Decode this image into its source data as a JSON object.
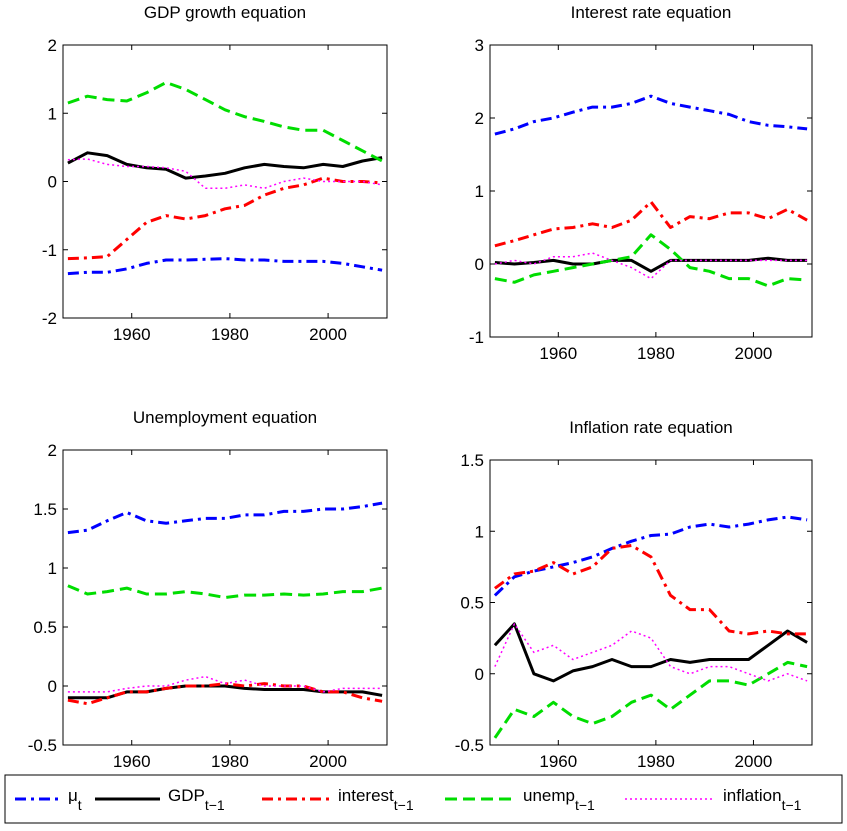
{
  "chart_data": [
    {
      "type": "line",
      "title": "GDP growth equation",
      "x": [
        1947,
        1951,
        1955,
        1959,
        1963,
        1967,
        1971,
        1975,
        1979,
        1983,
        1987,
        1991,
        1995,
        1999,
        2003,
        2007,
        2011
      ],
      "xlim": [
        1946,
        2012
      ],
      "xticks": [
        1960,
        1980,
        2000
      ],
      "ylim": [
        -2,
        2
      ],
      "yticks": [
        -2,
        -1,
        0,
        1,
        2
      ],
      "series": [
        {
          "color": "#0000ff",
          "linestyle": "dashdot",
          "linewidth": 3,
          "values": [
            -1.35,
            -1.33,
            -1.33,
            -1.28,
            -1.2,
            -1.15,
            -1.15,
            -1.14,
            -1.13,
            -1.15,
            -1.15,
            -1.17,
            -1.17,
            -1.17,
            -1.2,
            -1.25,
            -1.3
          ]
        },
        {
          "color": "#000000",
          "linestyle": "solid",
          "linewidth": 3,
          "values": [
            0.27,
            0.42,
            0.38,
            0.25,
            0.2,
            0.18,
            0.05,
            0.08,
            0.12,
            0.2,
            0.25,
            0.22,
            0.2,
            0.25,
            0.22,
            0.3,
            0.35
          ]
        },
        {
          "color": "#ff0000",
          "linestyle": "dashdot",
          "linewidth": 3,
          "values": [
            -1.13,
            -1.12,
            -1.1,
            -0.85,
            -0.6,
            -0.5,
            -0.55,
            -0.5,
            -0.4,
            -0.35,
            -0.2,
            -0.1,
            -0.05,
            0.05,
            0,
            0,
            -0.02
          ]
        },
        {
          "color": "#00dd00",
          "linestyle": "dashed",
          "linewidth": 3,
          "values": [
            1.15,
            1.25,
            1.2,
            1.18,
            1.3,
            1.45,
            1.35,
            1.2,
            1.05,
            0.95,
            0.88,
            0.8,
            0.75,
            0.75,
            0.6,
            0.45,
            0.3
          ]
        },
        {
          "color": "#ff00ff",
          "linestyle": "dotted",
          "linewidth": 1.5,
          "values": [
            0.32,
            0.33,
            0.25,
            0.22,
            0.22,
            0.2,
            0.15,
            -0.1,
            -0.1,
            -0.05,
            -0.1,
            0,
            0.05,
            0,
            0,
            0,
            -0.05
          ]
        }
      ]
    },
    {
      "type": "line",
      "title": "Interest rate equation",
      "x": [
        1947,
        1951,
        1955,
        1959,
        1963,
        1967,
        1971,
        1975,
        1979,
        1983,
        1987,
        1991,
        1995,
        1999,
        2003,
        2007,
        2011
      ],
      "xlim": [
        1946,
        2012
      ],
      "xticks": [
        1960,
        1980,
        2000
      ],
      "ylim": [
        -1,
        3
      ],
      "yticks": [
        -1,
        0,
        1,
        2,
        3
      ],
      "series": [
        {
          "color": "#0000ff",
          "linestyle": "dashdot",
          "linewidth": 3,
          "values": [
            1.78,
            1.85,
            1.95,
            2.0,
            2.08,
            2.15,
            2.15,
            2.2,
            2.3,
            2.2,
            2.15,
            2.1,
            2.05,
            1.95,
            1.9,
            1.88,
            1.85
          ]
        },
        {
          "color": "#000000",
          "linestyle": "solid",
          "linewidth": 3,
          "values": [
            0.02,
            0,
            0.02,
            0.05,
            0,
            0,
            0.05,
            0.05,
            -0.1,
            0.05,
            0.05,
            0.05,
            0.05,
            0.05,
            0.08,
            0.05,
            0.05
          ]
        },
        {
          "color": "#ff0000",
          "linestyle": "dashdot",
          "linewidth": 3,
          "values": [
            0.25,
            0.32,
            0.4,
            0.48,
            0.5,
            0.55,
            0.5,
            0.6,
            0.85,
            0.5,
            0.65,
            0.62,
            0.7,
            0.7,
            0.62,
            0.75,
            0.6
          ]
        },
        {
          "color": "#00dd00",
          "linestyle": "dashed",
          "linewidth": 3,
          "values": [
            -0.2,
            -0.25,
            -0.15,
            -0.1,
            -0.05,
            0,
            0.05,
            0.1,
            0.4,
            0.2,
            -0.05,
            -0.1,
            -0.2,
            -0.2,
            -0.3,
            -0.2,
            -0.22
          ]
        },
        {
          "color": "#ff00ff",
          "linestyle": "dotted",
          "linewidth": 1.5,
          "values": [
            0,
            0.05,
            0,
            0.1,
            0.1,
            0.15,
            0.05,
            -0.05,
            -0.2,
            0.05,
            0.05,
            0.05,
            0.05,
            0.05,
            0.05,
            0.05,
            0.05
          ]
        }
      ]
    },
    {
      "type": "line",
      "title": "Unemployment equation",
      "x": [
        1947,
        1951,
        1955,
        1959,
        1963,
        1967,
        1971,
        1975,
        1979,
        1983,
        1987,
        1991,
        1995,
        1999,
        2003,
        2007,
        2011
      ],
      "xlim": [
        1946,
        2012
      ],
      "xticks": [
        1960,
        1980,
        2000
      ],
      "ylim": [
        -0.5,
        2
      ],
      "yticks": [
        -0.5,
        0,
        0.5,
        1,
        1.5,
        2
      ],
      "series": [
        {
          "color": "#0000ff",
          "linestyle": "dashdot",
          "linewidth": 3,
          "values": [
            1.3,
            1.32,
            1.4,
            1.47,
            1.4,
            1.38,
            1.4,
            1.42,
            1.42,
            1.45,
            1.45,
            1.48,
            1.48,
            1.5,
            1.5,
            1.52,
            1.55
          ]
        },
        {
          "color": "#000000",
          "linestyle": "solid",
          "linewidth": 3,
          "values": [
            -0.1,
            -0.1,
            -0.1,
            -0.05,
            -0.05,
            -0.02,
            0,
            0,
            0,
            -0.02,
            -0.03,
            -0.03,
            -0.03,
            -0.05,
            -0.05,
            -0.05,
            -0.08
          ]
        },
        {
          "color": "#ff0000",
          "linestyle": "dashdot",
          "linewidth": 3,
          "values": [
            -0.12,
            -0.15,
            -0.1,
            -0.05,
            -0.05,
            -0.02,
            0,
            0,
            0.02,
            0,
            0.02,
            0,
            0,
            -0.05,
            -0.05,
            -0.1,
            -0.13
          ]
        },
        {
          "color": "#00dd00",
          "linestyle": "dashed",
          "linewidth": 3,
          "values": [
            0.85,
            0.78,
            0.8,
            0.83,
            0.78,
            0.78,
            0.8,
            0.78,
            0.75,
            0.77,
            0.77,
            0.78,
            0.77,
            0.78,
            0.8,
            0.8,
            0.83
          ]
        },
        {
          "color": "#ff00ff",
          "linestyle": "dotted",
          "linewidth": 1.5,
          "values": [
            -0.05,
            -0.05,
            -0.05,
            -0.02,
            0,
            0,
            0.05,
            0.08,
            0.02,
            0.05,
            0,
            0,
            0,
            -0.05,
            -0.02,
            -0.02,
            -0.02
          ]
        }
      ]
    },
    {
      "type": "line",
      "title": "Inflation rate equation",
      "x": [
        1947,
        1951,
        1955,
        1959,
        1963,
        1967,
        1971,
        1975,
        1979,
        1983,
        1987,
        1991,
        1995,
        1999,
        2003,
        2007,
        2011
      ],
      "xlim": [
        1946,
        2012
      ],
      "xticks": [
        1960,
        1980,
        2000
      ],
      "ylim": [
        -0.5,
        1.5
      ],
      "yticks": [
        -0.5,
        0,
        0.5,
        1,
        1.5
      ],
      "series": [
        {
          "color": "#0000ff",
          "linestyle": "dashdot",
          "linewidth": 3,
          "values": [
            0.55,
            0.68,
            0.72,
            0.75,
            0.78,
            0.82,
            0.88,
            0.93,
            0.97,
            0.98,
            1.03,
            1.05,
            1.03,
            1.05,
            1.08,
            1.1,
            1.08
          ]
        },
        {
          "color": "#000000",
          "linestyle": "solid",
          "linewidth": 3,
          "values": [
            0.2,
            0.35,
            0,
            -0.05,
            0.02,
            0.05,
            0.1,
            0.05,
            0.05,
            0.1,
            0.08,
            0.1,
            0.1,
            0.1,
            0.2,
            0.3,
            0.22
          ]
        },
        {
          "color": "#ff0000",
          "linestyle": "dashdot",
          "linewidth": 3,
          "values": [
            0.6,
            0.7,
            0.72,
            0.78,
            0.7,
            0.75,
            0.88,
            0.9,
            0.82,
            0.55,
            0.45,
            0.45,
            0.3,
            0.28,
            0.3,
            0.28,
            0.28
          ]
        },
        {
          "color": "#00dd00",
          "linestyle": "dashed",
          "linewidth": 3,
          "values": [
            -0.45,
            -0.25,
            -0.3,
            -0.2,
            -0.3,
            -0.35,
            -0.3,
            -0.2,
            -0.15,
            -0.25,
            -0.15,
            -0.05,
            -0.05,
            -0.08,
            0,
            0.08,
            0.05
          ]
        },
        {
          "color": "#ff00ff",
          "linestyle": "dotted",
          "linewidth": 1.5,
          "values": [
            0.05,
            0.35,
            0.15,
            0.2,
            0.1,
            0.15,
            0.2,
            0.3,
            0.25,
            0.05,
            0,
            0.05,
            0.05,
            0,
            -0.05,
            0,
            -0.05
          ]
        }
      ]
    }
  ],
  "legend": [
    {
      "name": "μ",
      "subscript": "t"
    },
    {
      "name": "GDP",
      "subscript": "t−1"
    },
    {
      "name": "interest",
      "subscript": "t−1"
    },
    {
      "name": "unemp",
      "subscript": "t−1"
    },
    {
      "name": "inflation",
      "subscript": "t−1"
    }
  ]
}
